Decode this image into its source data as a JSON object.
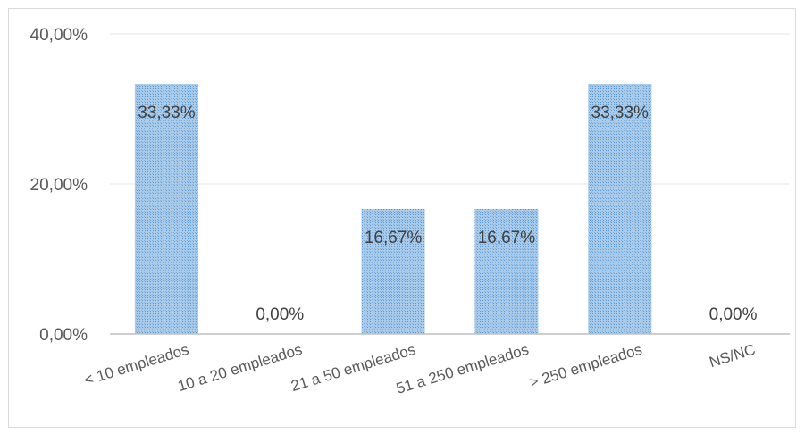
{
  "chart_data": {
    "type": "bar",
    "categories": [
      "< 10 empleados",
      "10 a 20 empleados",
      "21 a 50 empleados",
      "51 a 250 empleados",
      "> 250 empleados",
      "NS/NC"
    ],
    "values": [
      33.33,
      0.0,
      16.67,
      16.67,
      33.33,
      0.0
    ],
    "data_labels": [
      "33,33%",
      "0,00%",
      "16,67%",
      "16,67%",
      "33,33%",
      "0,00%"
    ],
    "y_ticks": [
      "0,00%",
      "20,00%",
      "40,00%"
    ],
    "ylim": [
      0,
      40
    ],
    "grid": true,
    "legend": "none",
    "colors": {
      "bar": "#9dc3e6",
      "bar_dot": "#5b9bd5",
      "grid": "#e6e6e6",
      "axis": "#bfbfbf"
    }
  }
}
